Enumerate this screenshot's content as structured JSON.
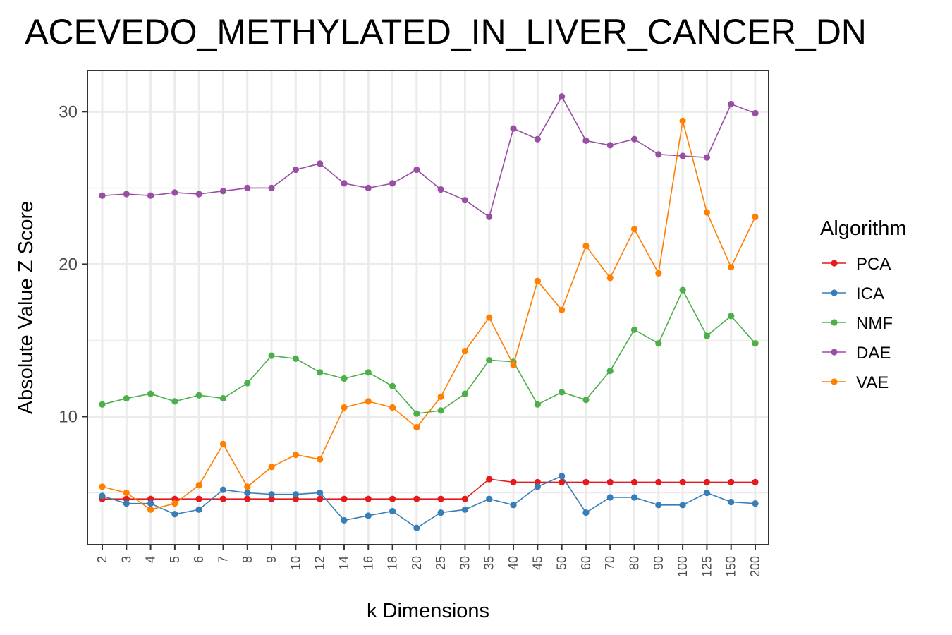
{
  "chart_data": {
    "type": "line",
    "title": "ACEVEDO_METHYLATED_IN_LIVER_CANCER_DN",
    "xlabel": "k Dimensions",
    "ylabel": "Absolute Value Z Score",
    "categories": [
      "2",
      "3",
      "4",
      "5",
      "6",
      "7",
      "8",
      "9",
      "10",
      "12",
      "14",
      "16",
      "18",
      "20",
      "25",
      "30",
      "35",
      "40",
      "45",
      "50",
      "60",
      "70",
      "80",
      "90",
      "100",
      "125",
      "150",
      "200"
    ],
    "ylim": [
      1.6,
      32.7
    ],
    "yticks": [
      10,
      20,
      30
    ],
    "grid": true,
    "legend": {
      "title": "Algorithm",
      "position": "right"
    },
    "series": [
      {
        "name": "PCA",
        "color": "#e41a1c",
        "values": [
          4.6,
          4.6,
          4.6,
          4.6,
          4.6,
          4.6,
          4.6,
          4.6,
          4.6,
          4.6,
          4.6,
          4.6,
          4.6,
          4.6,
          4.6,
          4.6,
          5.9,
          5.7,
          5.7,
          5.7,
          5.7,
          5.7,
          5.7,
          5.7,
          5.7,
          5.7,
          5.7,
          5.7
        ]
      },
      {
        "name": "ICA",
        "color": "#377eb8",
        "values": [
          4.8,
          4.3,
          4.3,
          3.6,
          3.9,
          5.2,
          5.0,
          4.9,
          4.9,
          5.0,
          3.2,
          3.5,
          3.8,
          2.7,
          3.7,
          3.9,
          4.6,
          4.2,
          5.4,
          6.1,
          3.7,
          4.7,
          4.7,
          4.2,
          4.2,
          5.0,
          4.4,
          4.3
        ]
      },
      {
        "name": "NMF",
        "color": "#4daf4a",
        "values": [
          10.8,
          11.2,
          11.5,
          11.0,
          11.4,
          11.2,
          12.2,
          14.0,
          13.8,
          12.9,
          12.5,
          12.9,
          12.0,
          10.2,
          10.4,
          11.5,
          13.7,
          13.6,
          10.8,
          11.6,
          11.1,
          13.0,
          15.7,
          14.8,
          18.3,
          15.3,
          16.6,
          14.8
        ]
      },
      {
        "name": "DAE",
        "color": "#984ea3",
        "values": [
          24.5,
          24.6,
          24.5,
          24.7,
          24.6,
          24.8,
          25.0,
          25.0,
          26.2,
          26.6,
          25.3,
          25.0,
          25.3,
          26.2,
          24.9,
          24.2,
          23.1,
          28.9,
          28.2,
          31.0,
          28.1,
          27.8,
          28.2,
          27.2,
          27.1,
          27.0,
          30.5,
          29.9
        ]
      },
      {
        "name": "VAE",
        "color": "#ff7f00",
        "values": [
          5.4,
          5.0,
          3.9,
          4.3,
          5.5,
          8.2,
          5.4,
          6.7,
          7.5,
          7.2,
          10.6,
          11.0,
          10.6,
          9.3,
          11.3,
          14.3,
          16.5,
          13.4,
          18.9,
          17.0,
          21.2,
          19.1,
          22.3,
          19.4,
          29.4,
          23.4,
          19.8,
          23.1
        ]
      }
    ]
  }
}
